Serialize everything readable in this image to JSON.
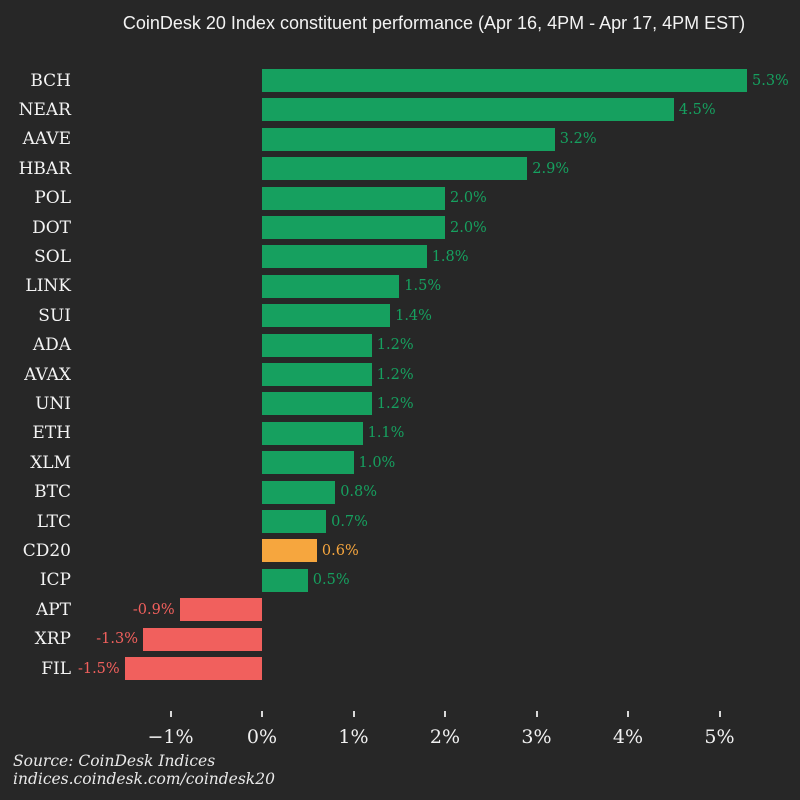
{
  "title": "CoinDesk 20 Index constituent performance (Apr 16, 4PM - Apr 17, 4PM EST)",
  "source": {
    "line1": "Source: CoinDesk Indices",
    "line2": "indices.coindesk.com/coindesk20"
  },
  "colors": {
    "background": "#272727",
    "positive": "#16a05f",
    "negative": "#f1605d",
    "index_highlight": "#f6a63e",
    "text": "#f3f3f3"
  },
  "chart_data": {
    "type": "bar",
    "orientation": "horizontal",
    "title": "CoinDesk 20 Index constituent performance (Apr 16, 4PM - Apr 17, 4PM EST)",
    "unit": "%",
    "categories": [
      "BCH",
      "NEAR",
      "AAVE",
      "HBAR",
      "POL",
      "DOT",
      "SOL",
      "LINK",
      "SUI",
      "ADA",
      "AVAX",
      "UNI",
      "ETH",
      "XLM",
      "BTC",
      "LTC",
      "CD20",
      "ICP",
      "APT",
      "XRP",
      "FIL"
    ],
    "values": [
      5.3,
      4.5,
      3.2,
      2.9,
      2.0,
      2.0,
      1.8,
      1.5,
      1.4,
      1.2,
      1.2,
      1.2,
      1.1,
      1.0,
      0.8,
      0.7,
      0.6,
      0.5,
      -0.9,
      -1.3,
      -1.5
    ],
    "value_labels": [
      "5.3%",
      "4.5%",
      "3.2%",
      "2.9%",
      "2.0%",
      "2.0%",
      "1.8%",
      "1.5%",
      "1.4%",
      "1.2%",
      "1.2%",
      "1.2%",
      "1.1%",
      "1.0%",
      "0.8%",
      "0.7%",
      "0.6%",
      "0.5%",
      "-0.9%",
      "-1.3%",
      "-1.5%"
    ],
    "bar_color_keys": [
      "positive",
      "positive",
      "positive",
      "positive",
      "positive",
      "positive",
      "positive",
      "positive",
      "positive",
      "positive",
      "positive",
      "positive",
      "positive",
      "positive",
      "positive",
      "positive",
      "index_highlight",
      "positive",
      "negative",
      "negative",
      "negative"
    ],
    "highlight_category": "CD20",
    "x_tick_labels": [
      "−1%",
      "0%",
      "1%",
      "2%",
      "3%",
      "4%",
      "5%"
    ],
    "x_tick_values": [
      -1,
      0,
      1,
      2,
      3,
      4,
      5
    ],
    "xlim": [
      -1.85,
      5.65
    ],
    "grid": false,
    "legend": false
  }
}
